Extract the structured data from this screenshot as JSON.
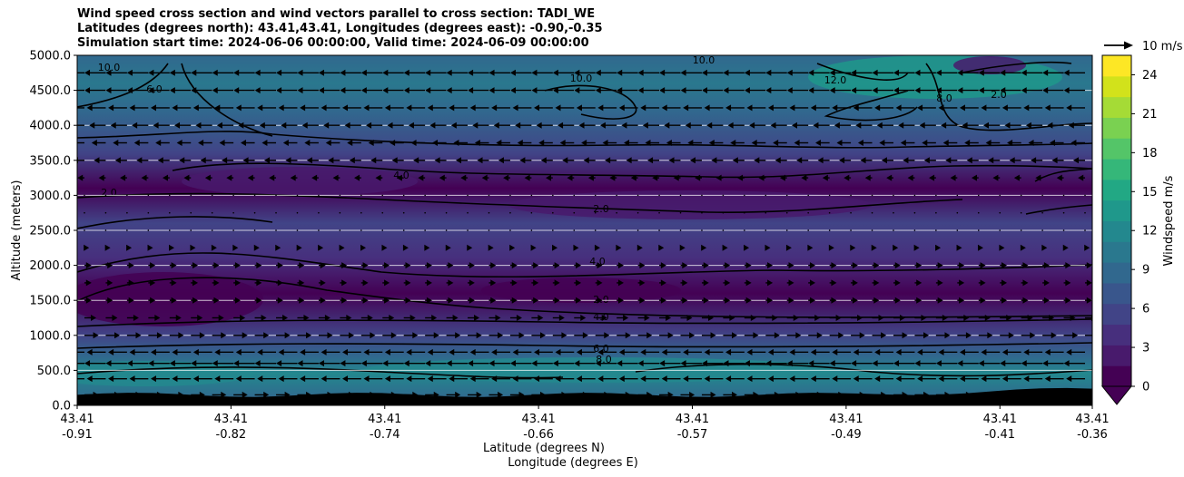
{
  "chart_data": {
    "type": "heatmap",
    "title_lines": [
      "Wind speed cross section and wind vectors parallel to cross section: TADI_WE",
      "Latitudes (degrees north): 43.41,43.41, Longitudes (degrees east): -0.90,-0.35",
      "Simulation start time: 2024-06-06 00:00:00, Valid time: 2024-06-09 00:00:00"
    ],
    "ylabel": "Altitude (meters)",
    "xlabel_lines": [
      "Latitude (degrees N)",
      "Longitude (degrees E)"
    ],
    "ylim": [
      0,
      5000
    ],
    "y_ticks": [
      "0.0",
      "500.0",
      "1000.0",
      "1500.0",
      "2000.0",
      "2500.0",
      "3000.0",
      "3500.0",
      "4000.0",
      "4500.0",
      "5000.0"
    ],
    "y_tick_values": [
      0,
      500,
      1000,
      1500,
      2000,
      2500,
      3000,
      3500,
      4000,
      4500,
      5000
    ],
    "x_tick_fracs": [
      0,
      0.1515,
      0.303,
      0.4545,
      0.606,
      0.7575,
      0.909,
      1.0
    ],
    "x_ticks_lat": [
      "43.41",
      "43.41",
      "43.41",
      "43.41",
      "43.41",
      "43.41",
      "43.41",
      "43.41"
    ],
    "x_ticks_lon": [
      "-0.91",
      "-0.82",
      "-0.74",
      "-0.66",
      "-0.57",
      "-0.49",
      "-0.41",
      "-0.36"
    ],
    "colorbar": {
      "label": "Windspeed m/s",
      "min": 0,
      "max": 25.5,
      "ticks": [
        0,
        3,
        6,
        9,
        12,
        15,
        18,
        21,
        24
      ],
      "extend": "min",
      "colors": [
        "#440154",
        "#481a6c",
        "#472f7d",
        "#414487",
        "#39568c",
        "#31688e",
        "#2a788e",
        "#23888e",
        "#1f988b",
        "#22a884",
        "#35b779",
        "#54c568",
        "#7ad151",
        "#a5db36",
        "#d2e21b",
        "#fde725"
      ]
    },
    "quiver_key": "10 m/s",
    "wind_speed_bands": [
      {
        "z": 0,
        "speed": 2
      },
      {
        "z": 100,
        "speed": 8
      },
      {
        "z": 450,
        "speed": 12
      },
      {
        "z": 700,
        "speed": 9
      },
      {
        "z": 1000,
        "speed": 5
      },
      {
        "z": 1600,
        "speed": 1.5
      },
      {
        "z": 2100,
        "speed": 4
      },
      {
        "z": 2600,
        "speed": 5
      },
      {
        "z": 3100,
        "speed": 1.5
      },
      {
        "z": 3600,
        "speed": 5
      },
      {
        "z": 4200,
        "speed": 9
      },
      {
        "z": 4600,
        "speed": 11
      },
      {
        "z": 5000,
        "speed": 8
      }
    ],
    "contour_labels": [
      "10.0",
      "8.0",
      "6.0",
      "4.0",
      "2.0",
      "12.0",
      "0.0"
    ],
    "wind_rows": [
      {
        "z": 150,
        "dir": "right",
        "speed": 6
      },
      {
        "z": 380,
        "dir": "left",
        "speed": 8
      },
      {
        "z": 600,
        "dir": "left",
        "speed": 9
      },
      {
        "z": 760,
        "dir": "left",
        "speed": 8
      },
      {
        "z": 1000,
        "dir": "right",
        "speed": 6
      },
      {
        "z": 1250,
        "dir": "right",
        "speed": 5
      },
      {
        "z": 1500,
        "dir": "right",
        "speed": 3
      },
      {
        "z": 1750,
        "dir": "right",
        "speed": 3
      },
      {
        "z": 2000,
        "dir": "right",
        "speed": 3
      },
      {
        "z": 2250,
        "dir": "right",
        "speed": 2
      },
      {
        "z": 2500,
        "dir": "right",
        "speed": 1
      },
      {
        "z": 2750,
        "dir": "left",
        "speed": 1
      },
      {
        "z": 3000,
        "dir": "left",
        "speed": 1
      },
      {
        "z": 3250,
        "dir": "left",
        "speed": 3
      },
      {
        "z": 3500,
        "dir": "left",
        "speed": 5
      },
      {
        "z": 3750,
        "dir": "left",
        "speed": 6
      },
      {
        "z": 4000,
        "dir": "left",
        "speed": 7
      },
      {
        "z": 4250,
        "dir": "left",
        "speed": 8
      },
      {
        "z": 4500,
        "dir": "left",
        "speed": 9
      },
      {
        "z": 4750,
        "dir": "left",
        "speed": 9
      }
    ]
  }
}
